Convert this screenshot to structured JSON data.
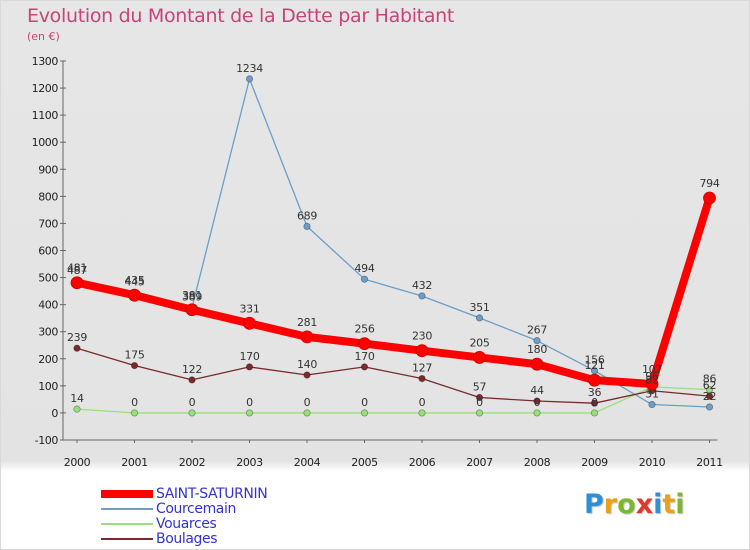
{
  "title": "Evolution du Montant de la Dette par Habitant",
  "subtitle": "(en €)",
  "logo": {
    "text": "Proxiti",
    "letters": [
      {
        "ch": "P",
        "color": "#2e8fd6"
      },
      {
        "ch": "r",
        "color": "#e8a21a"
      },
      {
        "ch": "o",
        "color": "#7cb82f"
      },
      {
        "ch": "x",
        "color": "#e03a2a"
      },
      {
        "ch": "i",
        "color": "#2e8fd6"
      },
      {
        "ch": "t",
        "color": "#e8a21a"
      },
      {
        "ch": "i",
        "color": "#7cb82f"
      }
    ]
  },
  "chart_data": {
    "type": "line",
    "x": [
      "2000",
      "2001",
      "2002",
      "2003",
      "2004",
      "2005",
      "2006",
      "2007",
      "2008",
      "2009",
      "2010",
      "2011"
    ],
    "ylim": [
      -100,
      1300
    ],
    "yticks": [
      -100,
      0,
      100,
      200,
      300,
      400,
      500,
      600,
      700,
      800,
      900,
      1000,
      1100,
      1200,
      1300
    ],
    "grid": false,
    "legend_position": "bottom-left",
    "series": [
      {
        "name": "Courcemain",
        "color": "#6b9ec9",
        "values": [
          487,
          445,
          389,
          1234,
          689,
          494,
          432,
          351,
          267,
          156,
          31,
          22
        ],
        "labels": [
          "487",
          "445",
          "389",
          "1234",
          "689",
          "494",
          "432",
          "351",
          "267",
          "156",
          "31",
          "22"
        ]
      },
      {
        "name": "Vouarces",
        "color": "#99e07a",
        "values": [
          14,
          0,
          0,
          0,
          0,
          0,
          0,
          0,
          0,
          0,
          96,
          86
        ],
        "labels": [
          "14",
          "0",
          "0",
          "0",
          "0",
          "0",
          "0",
          "0",
          "0",
          "0",
          "96",
          "86"
        ]
      },
      {
        "name": "Boulages",
        "color": "#7a2a2a",
        "values": [
          239,
          175,
          122,
          170,
          140,
          170,
          127,
          57,
          44,
          36,
          82,
          62
        ],
        "labels": [
          "239",
          "175",
          "122",
          "170",
          "140",
          "170",
          "127",
          "57",
          "44",
          "36",
          "82",
          "62"
        ]
      },
      {
        "name": "SAINT-SATURNIN",
        "color": "#ff0000",
        "values": [
          481,
          435,
          381,
          331,
          281,
          256,
          230,
          205,
          180,
          121,
          107,
          794
        ],
        "labels": [
          "481",
          "435",
          "381",
          "331",
          "281",
          "256",
          "230",
          "205",
          "180",
          "121",
          "107",
          "794"
        ]
      }
    ],
    "legend": [
      {
        "name": "SAINT-SATURNIN",
        "color": "#ff0000",
        "thickness": 8
      },
      {
        "name": "Courcemain",
        "color": "#6b9ec9",
        "thickness": 2
      },
      {
        "name": "Vouarces",
        "color": "#99e07a",
        "thickness": 2
      },
      {
        "name": "Boulages",
        "color": "#7a2a2a",
        "thickness": 2
      }
    ]
  }
}
